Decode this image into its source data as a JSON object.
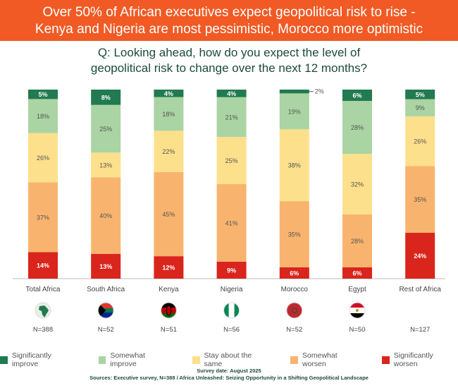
{
  "header": {
    "line1": "Over 50% of African executives expect geopolitical risk to rise -",
    "line2": "Kenya and Nigeria are most pessimistic, Morocco more optimistic"
  },
  "question": {
    "line1": "Q: Looking ahead, how do you expect the level of",
    "line2": "geopolitical risk to change over the next 12 months?"
  },
  "chart_data": {
    "type": "bar",
    "stacked": true,
    "categories": [
      "Total Africa",
      "South Africa",
      "Kenya",
      "Nigeria",
      "Morocco",
      "Egypt",
      "Rest of Africa"
    ],
    "sample_sizes": [
      "N=388",
      "N=52",
      "N=51",
      "N=56",
      "N=52",
      "N=50",
      "N=127"
    ],
    "flags": [
      "africa-map-icon",
      "south-africa-flag-icon",
      "kenya-flag-icon",
      "nigeria-flag-icon",
      "morocco-flag-icon",
      "egypt-flag-icon",
      ""
    ],
    "series": [
      {
        "name": "Significantly worsen",
        "color": "#d9251c",
        "values": [
          14,
          13,
          12,
          9,
          6,
          6,
          24
        ]
      },
      {
        "name": "Somewhat worsen",
        "color": "#f8b46e",
        "values": [
          37,
          40,
          45,
          41,
          35,
          28,
          35
        ]
      },
      {
        "name": "Stay about the same",
        "color": "#fde08b",
        "values": [
          26,
          13,
          22,
          25,
          38,
          32,
          26
        ]
      },
      {
        "name": "Somewhat improve",
        "color": "#aad4a3",
        "values": [
          18,
          25,
          18,
          21,
          19,
          28,
          9
        ]
      },
      {
        "name": "Significantly improve",
        "color": "#217a50",
        "values": [
          5,
          8,
          4,
          4,
          2,
          6,
          5
        ]
      }
    ],
    "annotation": "2%",
    "legend_placement": "bottom"
  },
  "legend": [
    "Significantly improve",
    "Somewhat improve",
    "Stay about the same",
    "Somewhat worsen",
    "Significantly worsen"
  ],
  "legend_colors": [
    "#217a50",
    "#aad4a3",
    "#fde08b",
    "#f8b46e",
    "#d9251c"
  ],
  "footer": {
    "date": "Survey date: August 2025",
    "sources": "Sources: Executive survey, N=388 / Africa Unleashed: Seizing Opportunity in a Shifting Geopolitical Landscape"
  }
}
